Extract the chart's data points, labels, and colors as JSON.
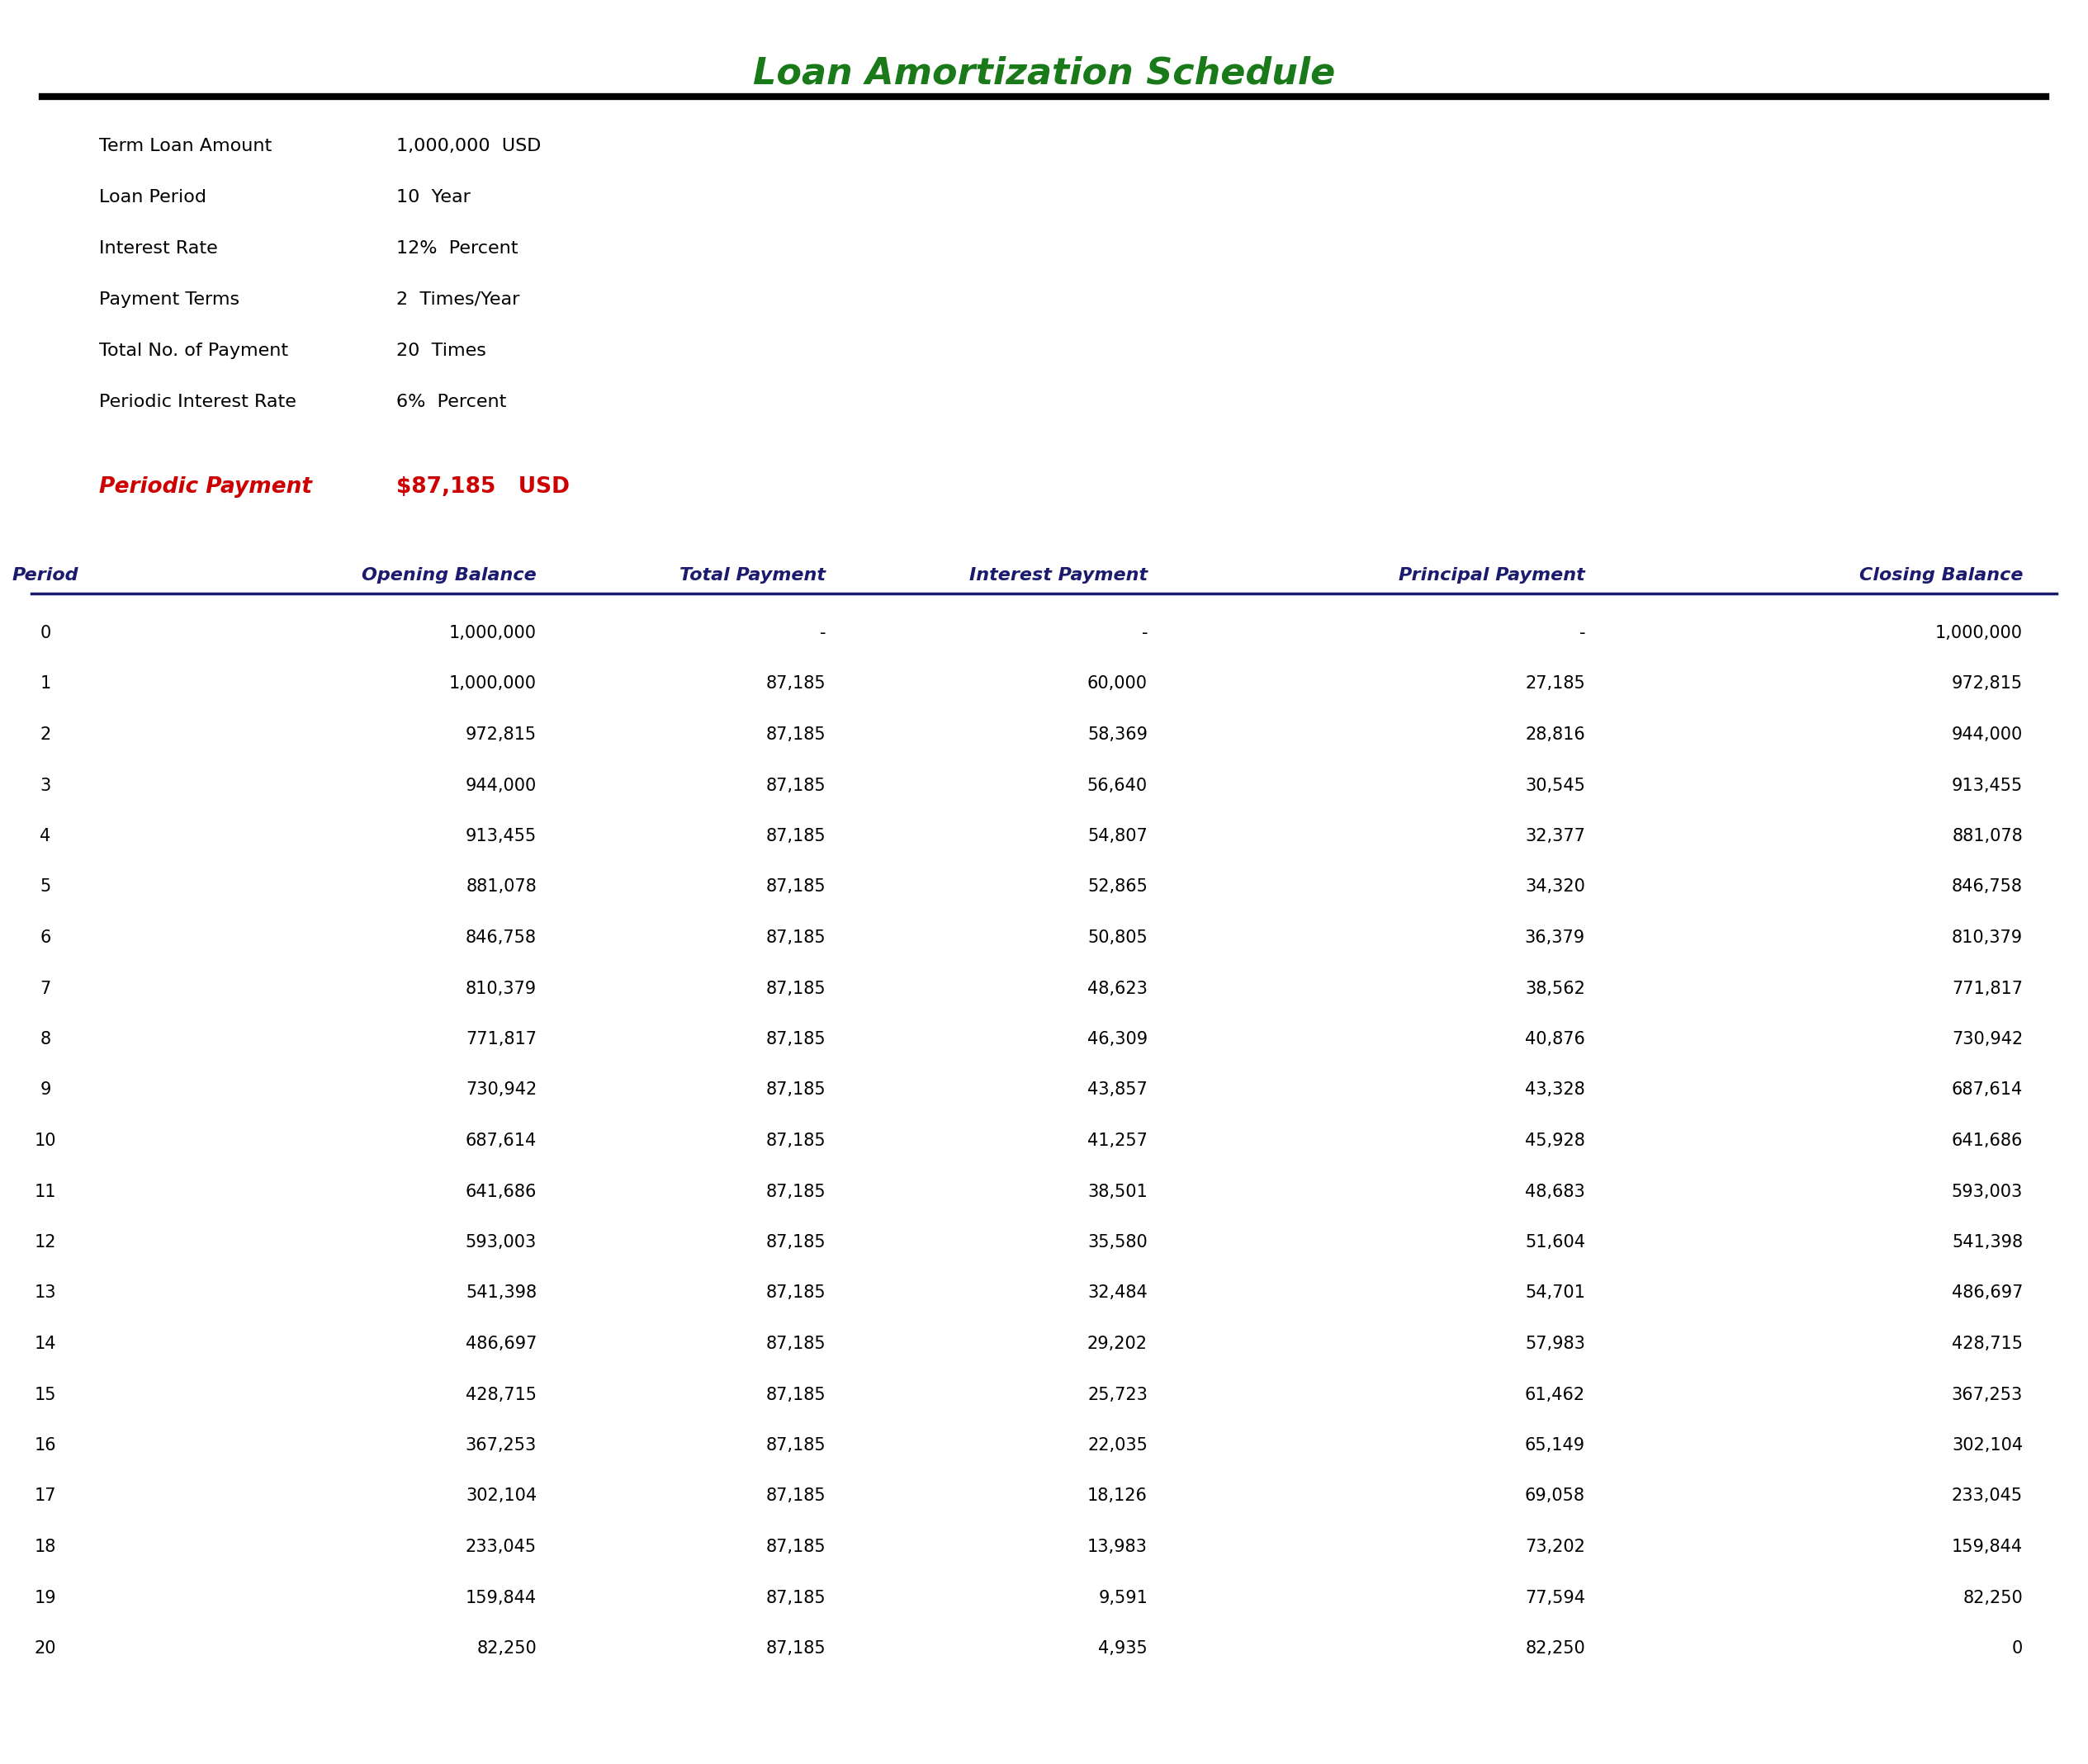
{
  "title": "Loan Amortization Schedule",
  "title_color": "#1a7a1a",
  "title_fontsize": 32,
  "bg_color": "#ffffff",
  "header_line_color": "#000000",
  "info_labels": [
    "Term Loan Amount",
    "Loan Period",
    "Interest Rate",
    "Payment Terms",
    "Total No. of Payment",
    "Periodic Interest Rate"
  ],
  "info_values": [
    "1,000,000  USD",
    "10  Year",
    "12%  Percent",
    "2  Times/Year",
    "20  Times",
    "6%  Percent"
  ],
  "periodic_payment_label": "Periodic Payment",
  "periodic_payment_value": "$87,185   USD",
  "periodic_label_color": "#cc0000",
  "periodic_value_color": "#cc0000",
  "table_headers": [
    "Period",
    "Opening Balance",
    "Total Payment",
    "Interest Payment",
    "Principal Payment",
    "Closing Balance"
  ],
  "table_header_color": "#1a1a6e",
  "table_data_color": "#000000",
  "table_rows": [
    [
      0,
      "1,000,000",
      "-",
      "-",
      "-",
      "1,000,000"
    ],
    [
      1,
      "1,000,000",
      "87,185",
      "60,000",
      "27,185",
      "972,815"
    ],
    [
      2,
      "972,815",
      "87,185",
      "58,369",
      "28,816",
      "944,000"
    ],
    [
      3,
      "944,000",
      "87,185",
      "56,640",
      "30,545",
      "913,455"
    ],
    [
      4,
      "913,455",
      "87,185",
      "54,807",
      "32,377",
      "881,078"
    ],
    [
      5,
      "881,078",
      "87,185",
      "52,865",
      "34,320",
      "846,758"
    ],
    [
      6,
      "846,758",
      "87,185",
      "50,805",
      "36,379",
      "810,379"
    ],
    [
      7,
      "810,379",
      "87,185",
      "48,623",
      "38,562",
      "771,817"
    ],
    [
      8,
      "771,817",
      "87,185",
      "46,309",
      "40,876",
      "730,942"
    ],
    [
      9,
      "730,942",
      "87,185",
      "43,857",
      "43,328",
      "687,614"
    ],
    [
      10,
      "687,614",
      "87,185",
      "41,257",
      "45,928",
      "641,686"
    ],
    [
      11,
      "641,686",
      "87,185",
      "38,501",
      "48,683",
      "593,003"
    ],
    [
      12,
      "593,003",
      "87,185",
      "35,580",
      "51,604",
      "541,398"
    ],
    [
      13,
      "541,398",
      "87,185",
      "32,484",
      "54,701",
      "486,697"
    ],
    [
      14,
      "486,697",
      "87,185",
      "29,202",
      "57,983",
      "428,715"
    ],
    [
      15,
      "428,715",
      "87,185",
      "25,723",
      "61,462",
      "367,253"
    ],
    [
      16,
      "367,253",
      "87,185",
      "22,035",
      "65,149",
      "302,104"
    ],
    [
      17,
      "302,104",
      "87,185",
      "18,126",
      "69,058",
      "233,045"
    ],
    [
      18,
      "233,045",
      "87,185",
      "13,983",
      "73,202",
      "159,844"
    ],
    [
      19,
      "159,844",
      "87,185",
      "9,591",
      "77,594",
      "82,250"
    ],
    [
      20,
      "82,250",
      "87,185",
      "4,935",
      "82,250",
      "0"
    ]
  ]
}
